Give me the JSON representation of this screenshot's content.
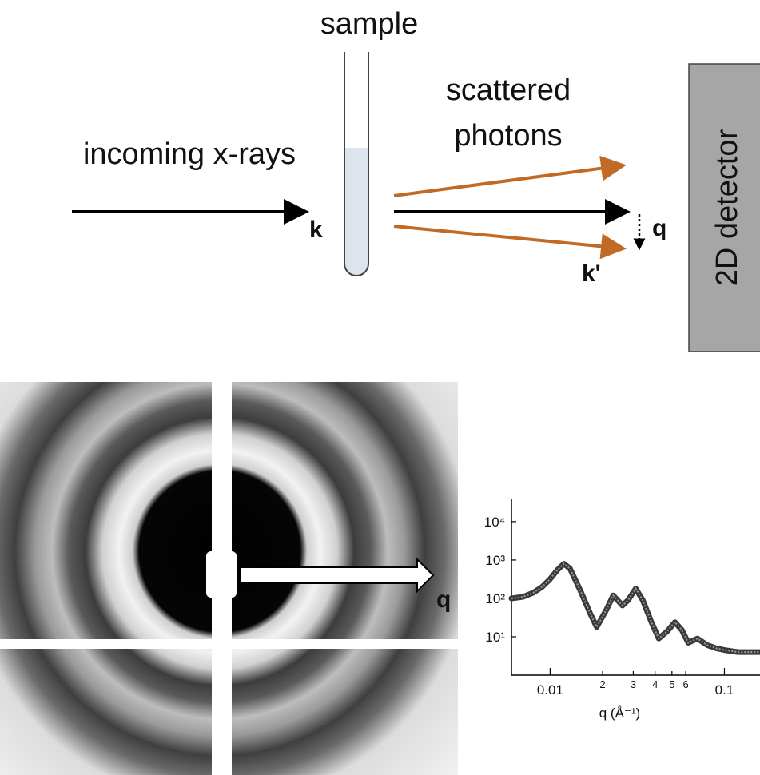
{
  "setup": {
    "sample": "sample",
    "incoming": "incoming x-rays",
    "scattered": [
      "scattered",
      "photons"
    ],
    "k_in": "k",
    "k_out": "k'",
    "q": "q",
    "detector": "2D detector"
  },
  "image": {
    "q": "q"
  },
  "plot": {
    "type": "line",
    "log_x": true,
    "log_y": true,
    "color": "#3a3a3a",
    "x_label": "q (Å⁻¹)",
    "xlim": [
      0.006,
      0.16
    ],
    "ylim": [
      1,
      40000
    ],
    "xticks": [
      0.01,
      {
        "value": 0.02,
        "label": "2"
      },
      {
        "value": 0.03,
        "label": "3"
      },
      {
        "value": 0.04,
        "label": "4"
      },
      {
        "value": 0.05,
        "label": "5"
      },
      {
        "value": 0.06,
        "label": "6"
      },
      0.1
    ],
    "yticks": [
      {
        "value": 10,
        "label": "10¹"
      },
      {
        "value": 100,
        "label": "10²"
      },
      {
        "value": 1000,
        "label": "10³"
      },
      {
        "value": 10000,
        "label": "10⁴"
      }
    ],
    "x": [
      0.006,
      0.007,
      0.008,
      0.009,
      0.01,
      0.011,
      0.012,
      0.013,
      0.015,
      0.017,
      0.0185,
      0.021,
      0.023,
      0.026,
      0.028,
      0.031,
      0.034,
      0.038,
      0.042,
      0.047,
      0.052,
      0.057,
      0.062,
      0.07,
      0.08,
      0.09,
      0.1,
      0.12,
      0.14,
      0.16
    ],
    "values": [
      100,
      110,
      140,
      200,
      320,
      550,
      800,
      600,
      150,
      40,
      18,
      50,
      120,
      65,
      90,
      180,
      90,
      25,
      9,
      14,
      24,
      15,
      7,
      9,
      6,
      5,
      4.5,
      4,
      4,
      4
    ]
  }
}
